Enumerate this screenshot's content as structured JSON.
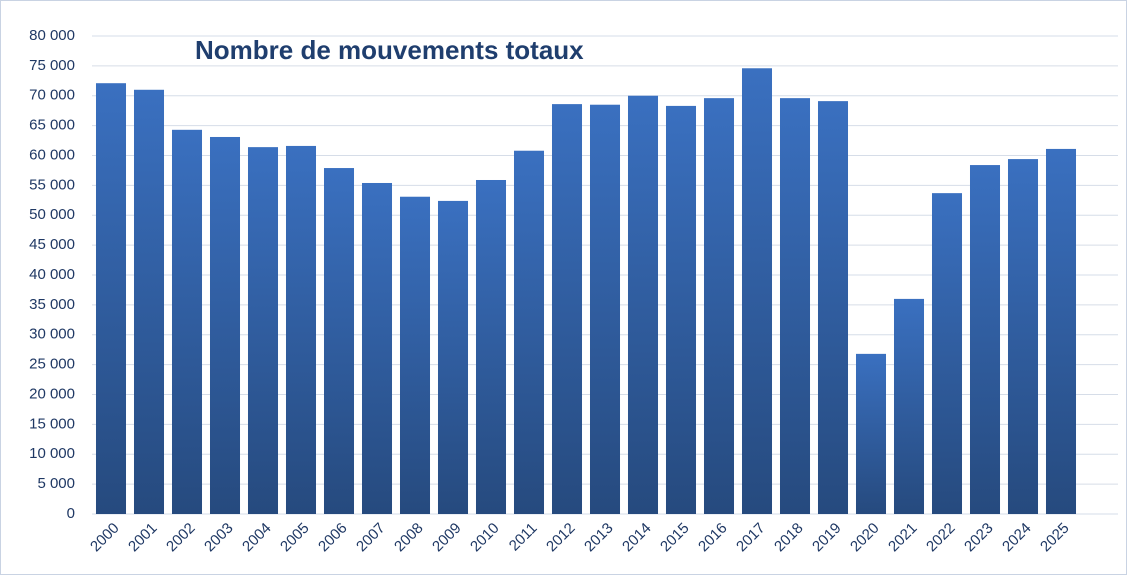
{
  "chart_data": {
    "type": "bar",
    "title": "Nombre de mouvements totaux",
    "categories": [
      "2000",
      "2001",
      "2002",
      "2003",
      "2004",
      "2005",
      "2006",
      "2007",
      "2008",
      "2009",
      "2010",
      "2011",
      "2012",
      "2013",
      "2014",
      "2015",
      "2016",
      "2017",
      "2018",
      "2019",
      "2020",
      "2021",
      "2022",
      "2023",
      "2024",
      "2025"
    ],
    "values": [
      72100,
      71000,
      64300,
      63100,
      61400,
      61600,
      57900,
      55400,
      53100,
      52400,
      55900,
      60800,
      68600,
      68500,
      70000,
      68300,
      69600,
      74600,
      69600,
      69100,
      26800,
      36000,
      53700,
      58400,
      59400,
      61100
    ],
    "color": "#3a70c0",
    "ylim": [
      0,
      80000
    ],
    "yticks": [
      0,
      {
        "value": 5000,
        "label": "5 000"
      },
      {
        "value": 10000,
        "label": "10 000"
      },
      {
        "value": 15000,
        "label": "15 000"
      },
      {
        "value": 20000,
        "label": "20 000"
      },
      {
        "value": 25000,
        "label": "25 000"
      },
      {
        "value": 30000,
        "label": "30 000"
      },
      {
        "value": 35000,
        "label": "35 000"
      },
      {
        "value": 40000,
        "label": "40 000"
      },
      {
        "value": 45000,
        "label": "45 000"
      },
      {
        "value": 50000,
        "label": "50 000"
      },
      {
        "value": 55000,
        "label": "55 000"
      },
      {
        "value": 60000,
        "label": "60 000"
      },
      {
        "value": 65000,
        "label": "65 000"
      },
      {
        "value": 70000,
        "label": "70 000"
      },
      {
        "value": 75000,
        "label": "75 000"
      },
      {
        "value": 80000,
        "label": "80 000"
      }
    ],
    "grid": true
  }
}
